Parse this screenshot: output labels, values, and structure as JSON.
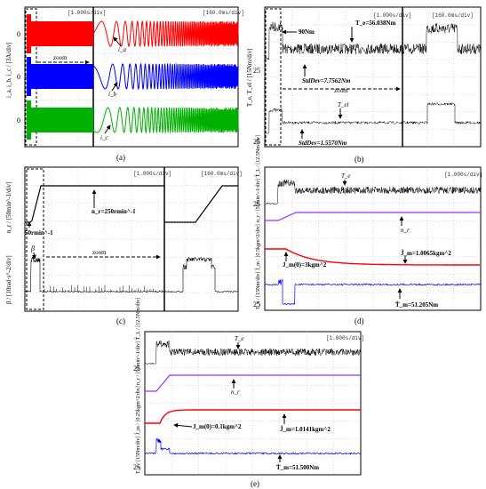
{
  "chart_data": [
    {
      "type": "line",
      "panel": "(a)",
      "ylabel": "i_a, i_b, i_c / [3A/div]",
      "time_scales": [
        "[1.000s/div]",
        "[160.0ms/div]"
      ],
      "annotations": [
        "zoom",
        "i_a",
        "i_b",
        "i_c"
      ],
      "series": [
        {
          "name": "i_a",
          "color": "#ff0000",
          "zero_tick": "0"
        },
        {
          "name": "i_b",
          "color": "#0000ff",
          "zero_tick": "0"
        },
        {
          "name": "i_c",
          "color": "#00b000",
          "zero_tick": "0"
        }
      ]
    },
    {
      "type": "line",
      "panel": "(b)",
      "ylabel": "T_e, T_el / [15Nm/div]",
      "time_scales": [
        "[1.000s/div]",
        "[160.0ms/div]"
      ],
      "yticks": [
        "25",
        "25"
      ],
      "annotations": [
        "90Nm",
        "T_e=56.038Nm",
        "StdDev=7.7562Nm",
        "zoom",
        "T_el",
        "StdDev=1.5570Nm"
      ],
      "series": [
        {
          "name": "T_e",
          "color": "#000000"
        },
        {
          "name": "T_el",
          "color": "#000000"
        }
      ]
    },
    {
      "type": "line",
      "panel": "(c)",
      "ylabel_top": "n_r / [50min^-1/div]",
      "ylabel_bottom": "β / [10rad·s^-2/div]",
      "time_scales": [
        "[1.000s/div]",
        "[160.0ms/div]"
      ],
      "annotations": [
        "n_r=250rmin^-1",
        "50rmin^-1",
        "β",
        "zoom"
      ],
      "series": [
        {
          "name": "n_r",
          "color": "#000000"
        },
        {
          "name": "β",
          "color": "#000000"
        }
      ]
    },
    {
      "type": "line",
      "panel": "(d)",
      "ylabel_top": "n_r / [50min^-1/div]  T̂_L / [12.5Nm/div]",
      "ylabel_bottom": "T_e / [15Nm/div]  Ĵ_m / [0.5kgm^2/div]",
      "time_scales": [
        "[1.000s/div]"
      ],
      "yticks": [
        "25",
        "25"
      ],
      "annotations": [
        "T_e",
        "n_r",
        "Ĵ_m=1.0065kgm^2",
        "J_m(0)=3kgm^2",
        "T̂_m=51.205Nm"
      ],
      "series": [
        {
          "name": "T_e",
          "color": "#000000"
        },
        {
          "name": "n_r",
          "color": "#9b30ff"
        },
        {
          "name": "Ĵ_m",
          "color": "#ff0000"
        },
        {
          "name": "T̂_m",
          "color": "#0000ff"
        }
      ]
    },
    {
      "type": "line",
      "panel": "(e)",
      "ylabel_top": "n_r / [50min^-1/div]  T̂_L / [12.5Nm/div]",
      "ylabel_bottom": "T_e / [15Nm/div]  Ĵ_m / [0.25kgm^2/div]",
      "time_scales": [
        "[1.000s/div]"
      ],
      "yticks": [
        "25",
        "25"
      ],
      "annotations": [
        "T_e",
        "n_r",
        "J_m(0)=0.1kgm^2",
        "Ĵ_m=1.0141kgm^2",
        "T̂_m=51.500Nm"
      ],
      "series": [
        {
          "name": "T_e",
          "color": "#000000"
        },
        {
          "name": "n_r",
          "color": "#9b30ff"
        },
        {
          "name": "Ĵ_m",
          "color": "#ff0000"
        },
        {
          "name": "T̂_m",
          "color": "#0000ff"
        }
      ]
    }
  ],
  "captions": [
    "(a)",
    "(b)",
    "(c)",
    "(d)",
    "(e)"
  ]
}
